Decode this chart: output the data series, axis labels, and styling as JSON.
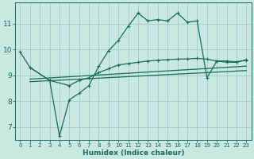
{
  "xlabel": "Humidex (Indice chaleur)",
  "bg_color": "#c8e8e0",
  "grid_color": "#a0cccc",
  "line_color": "#1a6b5a",
  "xlim": [
    -0.5,
    23.5
  ],
  "ylim": [
    6.5,
    11.8
  ],
  "yticks": [
    7,
    8,
    9,
    10,
    11
  ],
  "xticks": [
    0,
    1,
    2,
    3,
    4,
    5,
    6,
    7,
    8,
    9,
    10,
    11,
    12,
    13,
    14,
    15,
    16,
    17,
    18,
    19,
    20,
    21,
    22,
    23
  ],
  "line1_x": [
    0,
    1,
    3,
    4,
    5,
    6,
    7,
    8,
    9,
    10,
    11,
    12,
    13,
    14,
    15,
    16,
    17,
    18,
    19,
    20,
    21,
    22,
    23
  ],
  "line1_y": [
    9.9,
    9.3,
    8.8,
    6.65,
    8.05,
    8.3,
    8.6,
    9.35,
    9.95,
    10.35,
    10.9,
    11.4,
    11.1,
    11.15,
    11.1,
    11.4,
    11.05,
    11.1,
    8.9,
    9.55,
    9.5,
    9.5,
    9.6
  ],
  "line2_x": [
    1,
    3,
    5,
    6,
    7,
    8,
    9,
    10,
    11,
    12,
    13,
    14,
    15,
    16,
    17,
    18,
    19,
    20,
    21,
    22,
    23
  ],
  "line2_y": [
    9.3,
    8.8,
    8.6,
    8.8,
    8.9,
    9.1,
    9.25,
    9.4,
    9.45,
    9.5,
    9.55,
    9.58,
    9.6,
    9.62,
    9.63,
    9.65,
    9.62,
    9.55,
    9.55,
    9.52,
    9.58
  ],
  "line3_x": [
    1,
    23
  ],
  "line3_y": [
    8.85,
    9.35
  ],
  "line4_x": [
    1,
    23
  ],
  "line4_y": [
    8.75,
    9.18
  ]
}
